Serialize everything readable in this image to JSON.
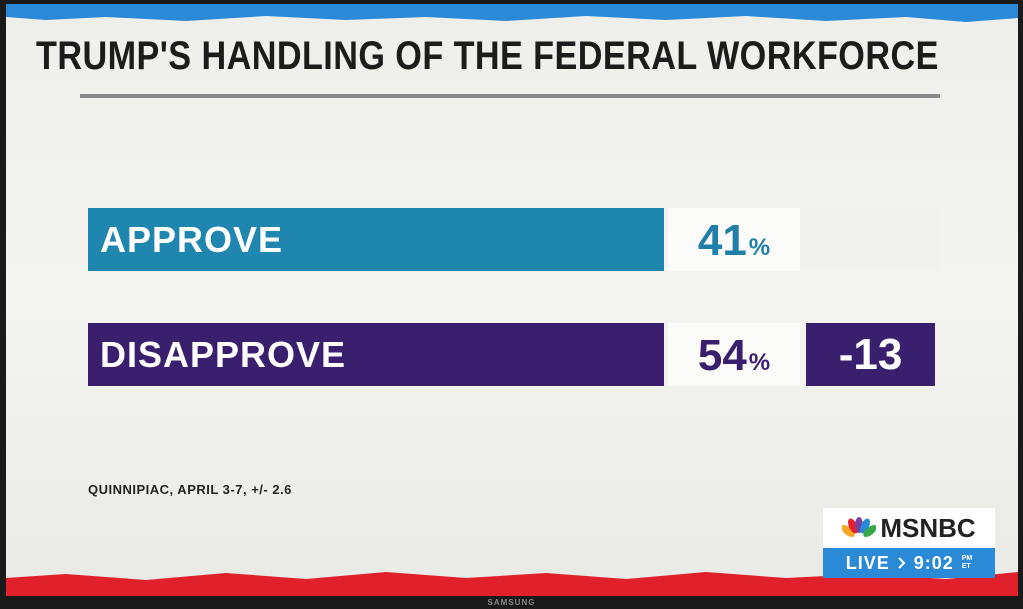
{
  "title": "TRUMP'S HANDLING OF THE FEDERAL WORKFORCE",
  "rows": [
    {
      "label": "APPROVE",
      "value": "41",
      "unit": "%"
    },
    {
      "label": "DISAPPROVE",
      "value": "54",
      "unit": "%",
      "margin": "-13"
    }
  ],
  "source": "QUINNIPIAC, APRIL 3-7, +/- 2.6",
  "network": {
    "name": "MSNBC",
    "live": "LIVE",
    "time": "9:02",
    "meridiem": "PM",
    "zone": "ET"
  },
  "tv_brand": "SAMSUNG"
}
